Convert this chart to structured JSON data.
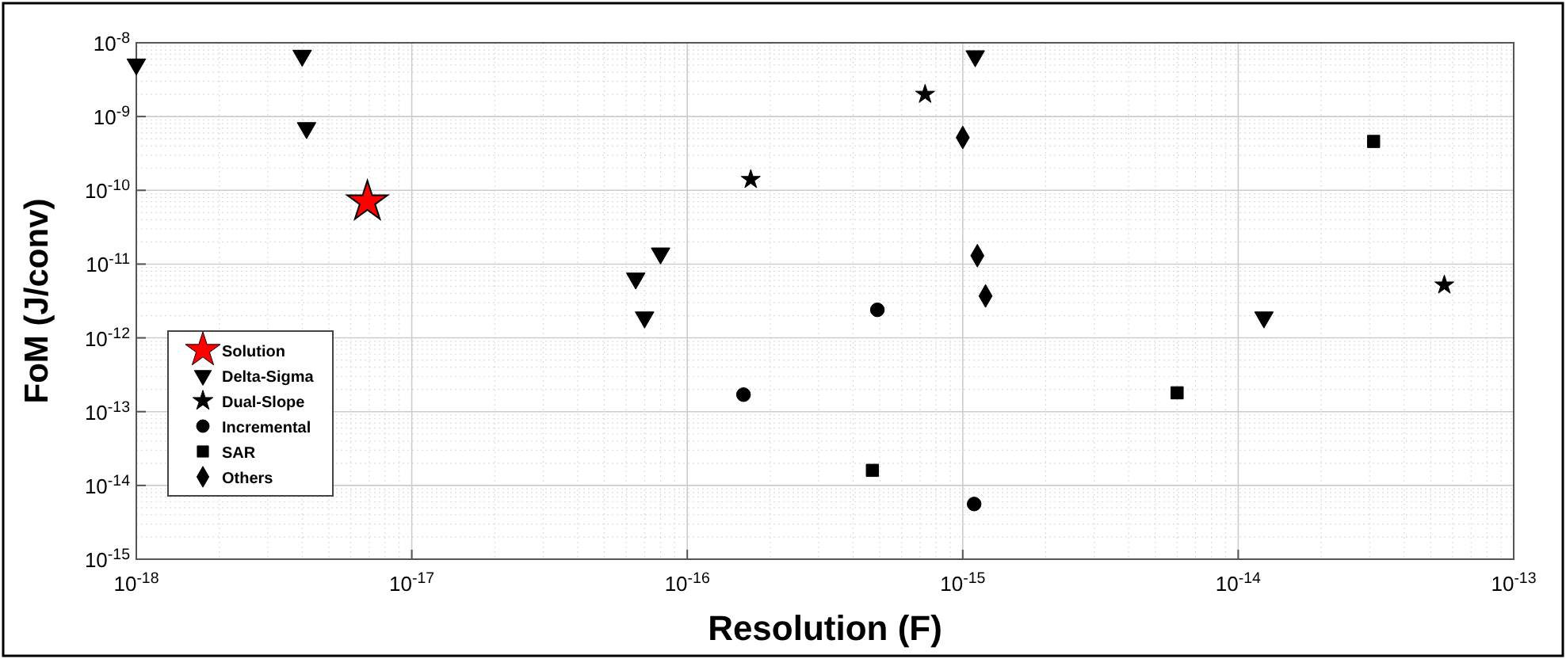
{
  "chart_data": {
    "type": "scatter",
    "xlabel": "Resolution (F)",
    "ylabel": "FoM (J/conv)",
    "log": "xy",
    "grid": true,
    "legend": "bottom left",
    "xlim": [
      1e-18,
      1e-13
    ],
    "ylim": [
      1e-15,
      1e-08
    ],
    "xticks": [
      {
        "value": 1e-18,
        "label": "10$^{-18}$"
      },
      {
        "value": 1e-17,
        "label": "10$^{-17}$"
      },
      {
        "value": 1e-16,
        "label": "10$^{-16}$"
      },
      {
        "value": 1e-15,
        "label": "10$^{-15}$"
      },
      {
        "value": 1e-14,
        "label": "10$^{-14}$"
      },
      {
        "value": 1e-13,
        "label": "10$^{-13}$"
      }
    ],
    "yticks": [
      {
        "value": 1e-15,
        "label": "10$^{-15}$"
      },
      {
        "value": 1e-14,
        "label": "10$^{-14}$"
      },
      {
        "value": 1e-13,
        "label": "10$^{-13}$"
      },
      {
        "value": 1e-12,
        "label": "10$^{-12}$"
      },
      {
        "value": 1e-11,
        "label": "10$^{-11}$"
      },
      {
        "value": 1e-10,
        "label": "10$^{-10}$"
      },
      {
        "value": 1e-09,
        "label": "10$^{-9}$"
      },
      {
        "value": 1e-08,
        "label": "10$^{-8}$"
      }
    ],
    "series": [
      {
        "name": "Solution",
        "color": "#ff0000",
        "marker": "star",
        "x": [
          6.9e-18
        ],
        "values": [
          7e-11
        ]
      },
      {
        "name": "Delta-Sigma",
        "color": "#000000",
        "marker": "triangle",
        "x": [
          1e-18,
          4e-18,
          4.15e-18,
          6.5e-17,
          8e-17,
          7e-17,
          1.11e-15,
          1.24e-14
        ],
        "values": [
          5.1e-09,
          6.7e-09,
          7e-10,
          6.4e-12,
          1.4e-11,
          1.9e-12,
          6.6e-09,
          1.9e-12
        ]
      },
      {
        "name": "Dual-Slope",
        "color": "#000000",
        "marker": "star",
        "x": [
          1.7e-16,
          7.3e-16,
          5.6e-14
        ],
        "values": [
          1.4e-10,
          2e-09,
          5.2e-12
        ]
      },
      {
        "name": "Incremental",
        "color": "#000000",
        "marker": "circle",
        "x": [
          1.6e-16,
          4.9e-16,
          1.1e-15
        ],
        "values": [
          1.7e-13,
          2.4e-12,
          5.6e-15
        ]
      },
      {
        "name": "SAR",
        "color": "#000000",
        "marker": "square",
        "x": [
          4.7e-16,
          6e-15,
          3.1e-14
        ],
        "values": [
          1.6e-14,
          1.8e-13,
          4.6e-10
        ]
      },
      {
        "name": "Others",
        "color": "#000000",
        "marker": "diamond",
        "x": [
          1e-15,
          1.13e-15,
          1.21e-15
        ],
        "values": [
          5.2e-10,
          1.3e-11,
          3.7e-12
        ]
      }
    ]
  }
}
